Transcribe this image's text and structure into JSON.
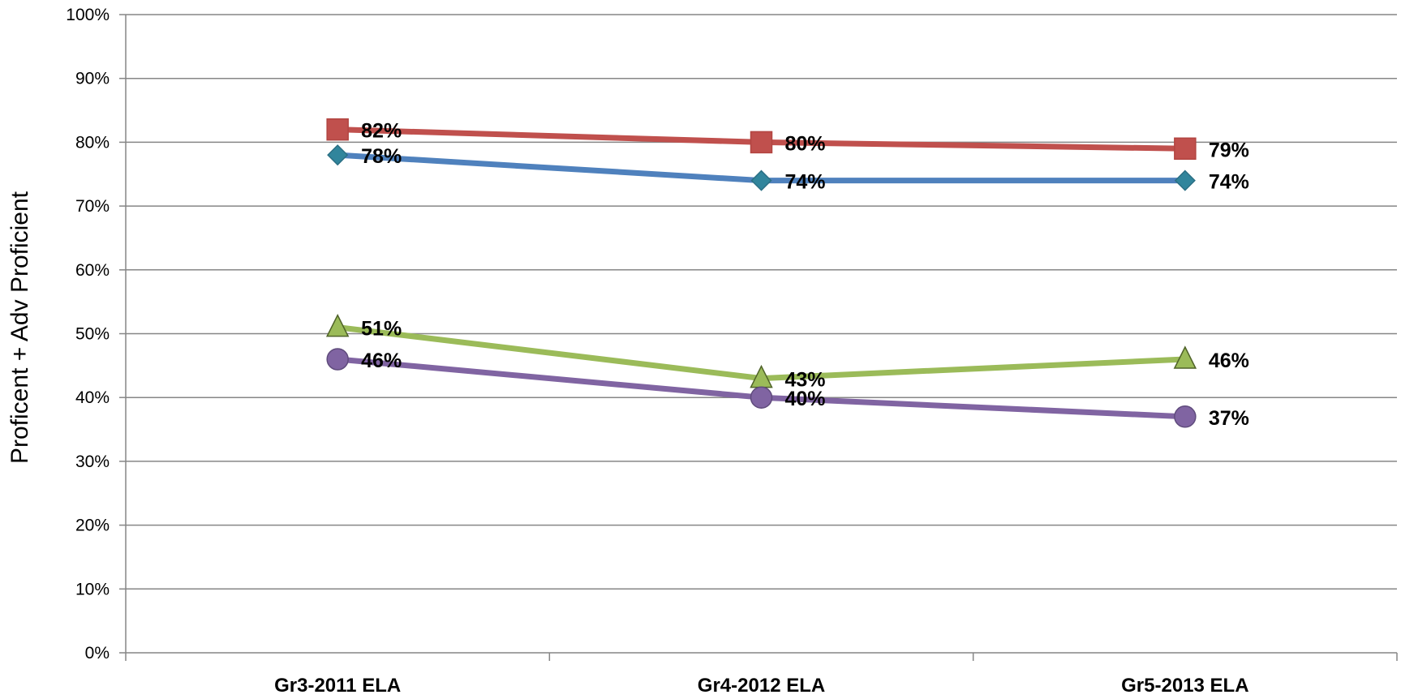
{
  "chart_data": {
    "type": "line",
    "title": "",
    "xlabel": "",
    "ylabel": "Proficent + Adv Proficient",
    "categories": [
      "Gr3-2011 ELA",
      "Gr4-2012 ELA",
      "Gr5-2013 ELA"
    ],
    "ylim": [
      0,
      100
    ],
    "yticks": [
      "0%",
      "10%",
      "20%",
      "30%",
      "40%",
      "50%",
      "60%",
      "70%",
      "80%",
      "90%",
      "100%"
    ],
    "grid": true,
    "legend": "none",
    "series": [
      {
        "values": [
          82,
          80,
          79
        ],
        "labels": [
          "82%",
          "80%",
          "79%"
        ],
        "color": "#c0504d",
        "marker": "square"
      },
      {
        "values": [
          78,
          74,
          74
        ],
        "labels": [
          "78%",
          "74%",
          "74%"
        ],
        "color": "#4f81bd",
        "marker_color": "#31859c",
        "marker": "diamond"
      },
      {
        "values": [
          51,
          43,
          46
        ],
        "labels": [
          "51%",
          "43%",
          "46%"
        ],
        "color": "#9bbb59",
        "marker": "triangle"
      },
      {
        "values": [
          46,
          40,
          37
        ],
        "labels": [
          "46%",
          "40%",
          "37%"
        ],
        "color": "#8064a2",
        "marker": "circle"
      }
    ]
  }
}
